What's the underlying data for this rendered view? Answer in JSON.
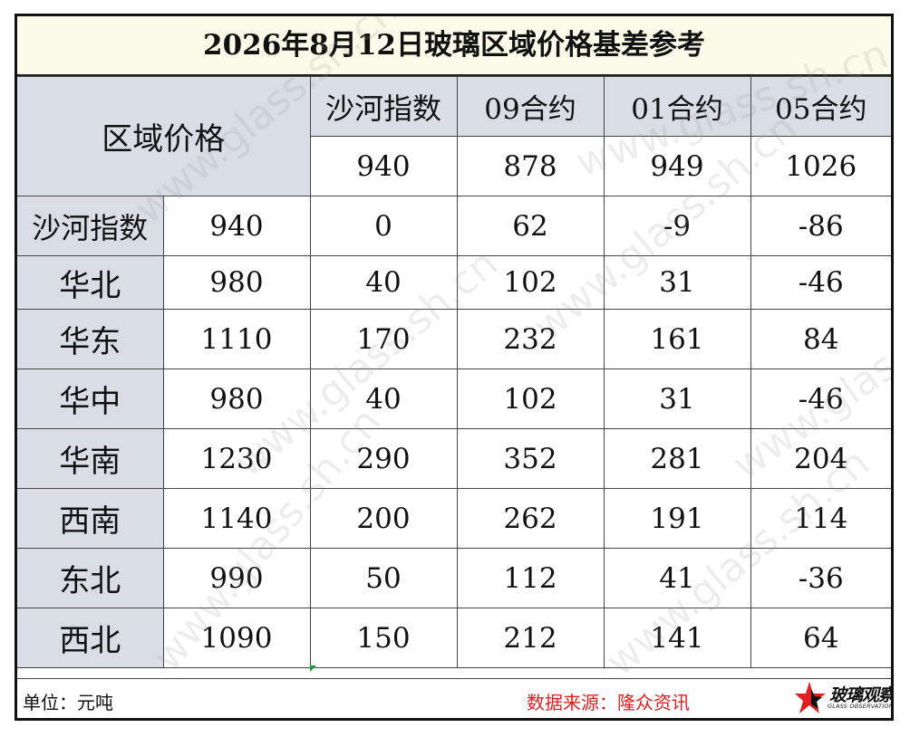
{
  "title": "2026年8月12日玻璃区域价格基差参考",
  "header": {
    "region_label": "区域价格",
    "columns": [
      "沙河指数",
      "09合约",
      "01合约",
      "05合约"
    ],
    "contract_prices": [
      "940",
      "878",
      "949",
      "1026"
    ]
  },
  "rows": [
    {
      "region": "沙河指数",
      "price": "940",
      "values": [
        "0",
        "62",
        "-9",
        "-86"
      ]
    },
    {
      "region": "华北",
      "price": "980",
      "values": [
        "40",
        "102",
        "31",
        "-46"
      ]
    },
    {
      "region": "华东",
      "price": "1110",
      "values": [
        "170",
        "232",
        "161",
        "84"
      ]
    },
    {
      "region": "华中",
      "price": "980",
      "values": [
        "40",
        "102",
        "31",
        "-46"
      ]
    },
    {
      "region": "华南",
      "price": "1230",
      "values": [
        "290",
        "352",
        "281",
        "204"
      ]
    },
    {
      "region": "西南",
      "price": "1140",
      "values": [
        "200",
        "262",
        "191",
        "114"
      ]
    },
    {
      "region": "东北",
      "price": "990",
      "values": [
        "50",
        "112",
        "41",
        "-36"
      ]
    },
    {
      "region": "西北",
      "price": "1090",
      "values": [
        "150",
        "212",
        "141",
        "64"
      ]
    }
  ],
  "footer": {
    "unit": "单位：元吨",
    "source": "数据来源：隆众资讯",
    "logo_text": "玻璃观察",
    "logo_sub": "GLASS OBSERVATION"
  },
  "watermark_text": "www.glass.sh.cn",
  "colors": {
    "positive": "#e01f1f",
    "negative": "#1f9a3a",
    "header_bg": "#d8dde6",
    "title_bg": "#fafbe9"
  }
}
